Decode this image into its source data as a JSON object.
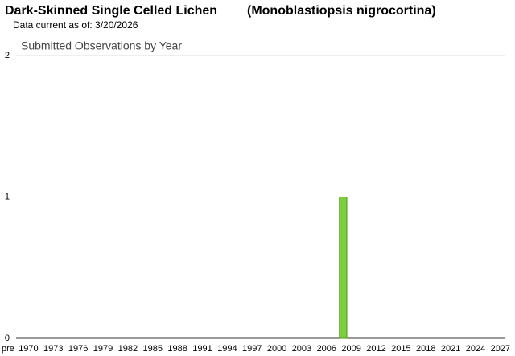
{
  "header": {
    "common_name": "Dark-Skinned Single Celled Lichen",
    "scientific_name": "(Monoblastiopsis nigrocortina)",
    "data_date": "Data current as of: 3/20/2026"
  },
  "chart_data": {
    "type": "bar",
    "title": "Submitted Observations by Year",
    "categories": [
      "pre",
      "1970",
      null,
      null,
      "1973",
      null,
      null,
      "1976",
      null,
      null,
      "1979",
      null,
      null,
      "1982",
      null,
      null,
      "1985",
      null,
      null,
      "1988",
      null,
      null,
      "1991",
      null,
      null,
      "1994",
      null,
      null,
      "1997",
      null,
      null,
      "2000",
      null,
      null,
      "2003",
      null,
      null,
      "2006",
      null,
      null,
      "2009",
      null,
      null,
      "2012",
      null,
      null,
      "2015",
      null,
      null,
      "2018",
      null,
      null,
      "2021",
      null,
      null,
      "2024",
      null,
      null,
      "2027"
    ],
    "values": [
      0,
      0,
      0,
      0,
      0,
      0,
      0,
      0,
      0,
      0,
      0,
      0,
      0,
      0,
      0,
      0,
      0,
      0,
      0,
      0,
      0,
      0,
      0,
      0,
      0,
      0,
      0,
      0,
      0,
      0,
      0,
      0,
      0,
      0,
      0,
      0,
      0,
      0,
      0,
      1,
      0,
      0,
      0,
      0,
      0,
      0,
      0,
      0,
      0,
      0,
      0,
      0,
      0,
      0,
      0,
      0,
      0,
      0,
      0
    ],
    "color": "#7dcf3c",
    "ylim": [
      0,
      2
    ],
    "yticks": [
      0,
      1,
      2
    ],
    "grid": true
  }
}
